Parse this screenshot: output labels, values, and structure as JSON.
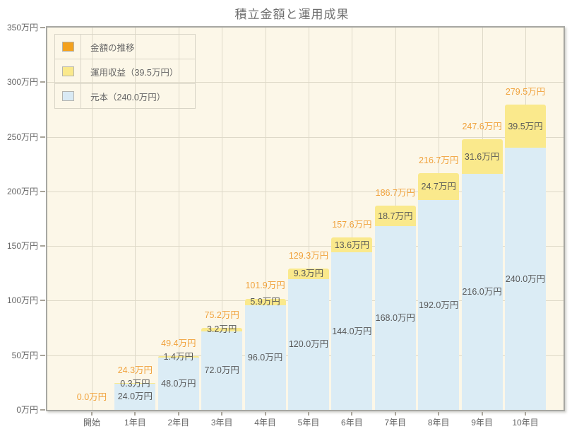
{
  "title": "積立金額と運用成果",
  "legend": {
    "items": [
      {
        "id": "total",
        "label": "金額の推移",
        "swatch": "#f3a11d"
      },
      {
        "id": "yield",
        "label": "運用収益（39.5万円）",
        "swatch": "#fae98c"
      },
      {
        "id": "principal",
        "label": "元本（240.0万円）",
        "swatch": "#d9eaf4"
      }
    ]
  },
  "chart_data": {
    "type": "bar",
    "stacked": true,
    "title": "積立金額と運用成果",
    "categories": [
      "開始",
      "1年目",
      "2年目",
      "3年目",
      "4年目",
      "5年目",
      "6年目",
      "7年目",
      "8年目",
      "9年目",
      "10年目"
    ],
    "series": [
      {
        "name": "元本",
        "color": "#dbecf5",
        "values": [
          0,
          24.0,
          48.0,
          72.0,
          96.0,
          120.0,
          144.0,
          168.0,
          192.0,
          216.0,
          240.0
        ]
      },
      {
        "name": "運用収益",
        "color": "#fae98c",
        "values": [
          0,
          0.3,
          1.4,
          3.2,
          5.9,
          9.3,
          13.6,
          18.7,
          24.7,
          31.6,
          39.5
        ]
      }
    ],
    "totals": [
      0.0,
      24.3,
      49.4,
      75.2,
      101.9,
      129.3,
      157.6,
      186.7,
      216.7,
      247.6,
      279.5
    ],
    "labels": {
      "totals": [
        "0.0万円",
        "24.3万円",
        "49.4万円",
        "75.2万円",
        "101.9万円",
        "129.3万円",
        "157.6万円",
        "186.7万円",
        "216.7万円",
        "247.6万円",
        "279.5万円"
      ],
      "yield": [
        "",
        "0.3万円",
        "1.4万円",
        "3.2万円",
        "5.9万円",
        "9.3万円",
        "13.6万円",
        "18.7万円",
        "24.7万円",
        "31.6万円",
        "39.5万円"
      ],
      "principal": [
        "",
        "24.0万円",
        "48.0万円",
        "72.0万円",
        "96.0万円",
        "120.0万円",
        "144.0万円",
        "168.0万円",
        "192.0万円",
        "216.0万円",
        "240.0万円"
      ]
    },
    "y_axis": {
      "ticks": [
        "0万円",
        "50万円",
        "100万円",
        "150万円",
        "200万円",
        "250万円",
        "300万円",
        "350万円"
      ],
      "values": [
        0,
        50,
        100,
        150,
        200,
        250,
        300,
        350
      ]
    },
    "ylim": [
      0,
      350
    ],
    "unit": "万円",
    "grid": true,
    "legend_position": "top-left"
  },
  "colors": {
    "page_background": "#ffffff",
    "plot_background": "#fcf7e8",
    "grid_line": "#ded9c8",
    "plot_border": "#a7a7a2",
    "total_label_text": "#f0a23c",
    "segment_label_text": "#595959",
    "axis_text": "#666666",
    "title_text": "#6e6e6e"
  }
}
